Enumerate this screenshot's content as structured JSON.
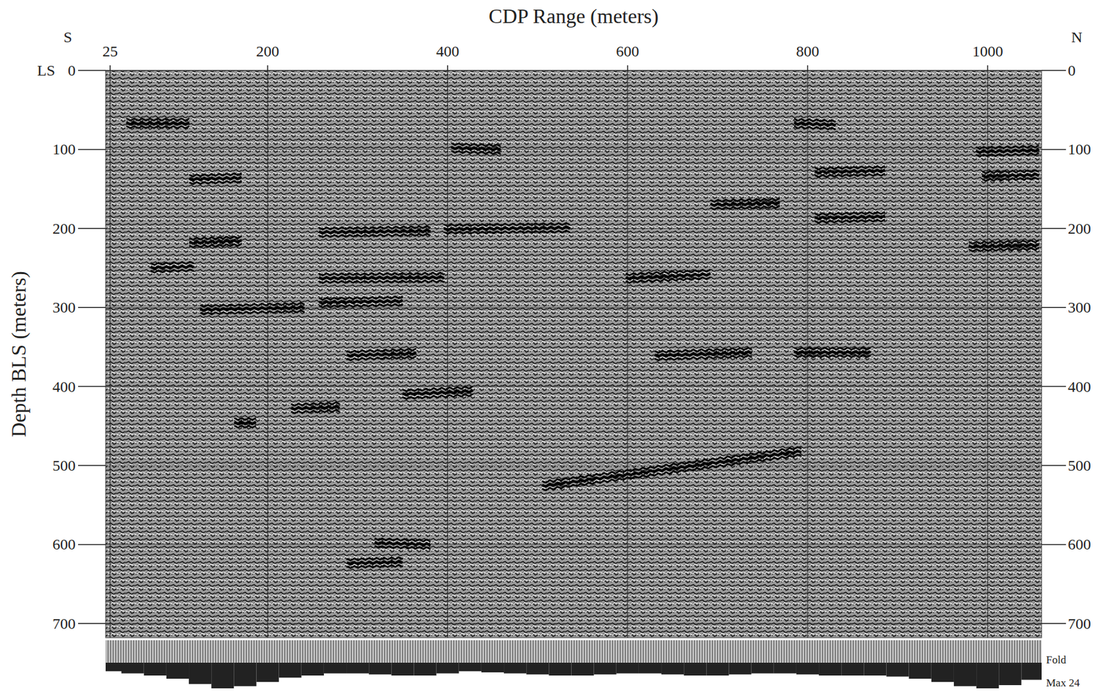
{
  "chart_data": {
    "type": "seismic_section",
    "title": "CDP Range (meters)",
    "y_label": "Depth BLS (meters)",
    "left_end_label": "S",
    "right_end_label": "N",
    "surface_label": "LS",
    "xlim": [
      20,
      1060
    ],
    "xticks": [
      25,
      200,
      400,
      600,
      800,
      1000
    ],
    "ylim": [
      0,
      718
    ],
    "yticks": [
      0,
      100,
      200,
      300,
      400,
      500,
      600,
      700
    ],
    "grid": true,
    "reflectors": [
      {
        "x": [
          43,
          113
        ],
        "depth": [
          67,
          67
        ]
      },
      {
        "x": [
          113,
          171
        ],
        "depth": [
          138,
          136
        ]
      },
      {
        "x": [
          257,
          381
        ],
        "depth": [
          205,
          203
        ]
      },
      {
        "x": [
          113,
          171
        ],
        "depth": [
          218,
          216
        ]
      },
      {
        "x": [
          70,
          118
        ],
        "depth": [
          250,
          248
        ]
      },
      {
        "x": [
          257,
          396
        ],
        "depth": [
          263,
          262
        ]
      },
      {
        "x": [
          257,
          350
        ],
        "depth": [
          294,
          292
        ]
      },
      {
        "x": [
          125,
          241
        ],
        "depth": [
          303,
          300
        ]
      },
      {
        "x": [
          288,
          365
        ],
        "depth": [
          361,
          358
        ]
      },
      {
        "x": [
          598,
          692
        ],
        "depth": [
          263,
          258
        ]
      },
      {
        "x": [
          630,
          738
        ],
        "depth": [
          361,
          357
        ]
      },
      {
        "x": [
          785,
          870
        ],
        "depth": [
          357,
          357
        ]
      },
      {
        "x": [
          350,
          428
        ],
        "depth": [
          410,
          406
        ]
      },
      {
        "x": [
          226,
          280
        ],
        "depth": [
          428,
          426
        ]
      },
      {
        "x": [
          163,
          187
        ],
        "depth": [
          446,
          446
        ]
      },
      {
        "x": [
          505,
          793
        ],
        "depth": [
          526,
          482
        ]
      },
      {
        "x": [
          319,
          381
        ],
        "depth": [
          598,
          600
        ]
      },
      {
        "x": [
          288,
          350
        ],
        "depth": [
          624,
          622
        ]
      },
      {
        "x": [
          404,
          459
        ],
        "depth": [
          98,
          100
        ]
      },
      {
        "x": [
          785,
          831
        ],
        "depth": [
          67,
          69
        ]
      },
      {
        "x": [
          808,
          886
        ],
        "depth": [
          129,
          127
        ]
      },
      {
        "x": [
          987,
          1057
        ],
        "depth": [
          103,
          101
        ]
      },
      {
        "x": [
          994,
          1057
        ],
        "depth": [
          134,
          132
        ]
      },
      {
        "x": [
          396,
          536
        ],
        "depth": [
          201,
          199
        ]
      },
      {
        "x": [
          979,
          1057
        ],
        "depth": [
          223,
          221
        ]
      },
      {
        "x": [
          692,
          769
        ],
        "depth": [
          170,
          168
        ]
      },
      {
        "x": [
          808,
          886
        ],
        "depth": [
          187,
          185
        ]
      }
    ],
    "fold": {
      "label": "Fold",
      "max_label": "Max 24",
      "max": 24,
      "x": [
        25,
        50,
        75,
        100,
        125,
        150,
        175,
        200,
        225,
        250,
        275,
        300,
        325,
        350,
        375,
        400,
        425,
        450,
        475,
        500,
        525,
        550,
        575,
        600,
        625,
        650,
        675,
        700,
        725,
        750,
        775,
        800,
        825,
        850,
        875,
        900,
        925,
        950,
        975,
        1000,
        1025,
        1050
      ],
      "values": [
        8,
        10,
        12,
        15,
        20,
        24,
        22,
        18,
        14,
        12,
        10,
        10,
        11,
        12,
        12,
        10,
        8,
        9,
        10,
        11,
        12,
        12,
        11,
        10,
        10,
        11,
        12,
        12,
        11,
        10,
        10,
        11,
        12,
        12,
        12,
        13,
        15,
        18,
        22,
        24,
        21,
        16
      ]
    }
  }
}
